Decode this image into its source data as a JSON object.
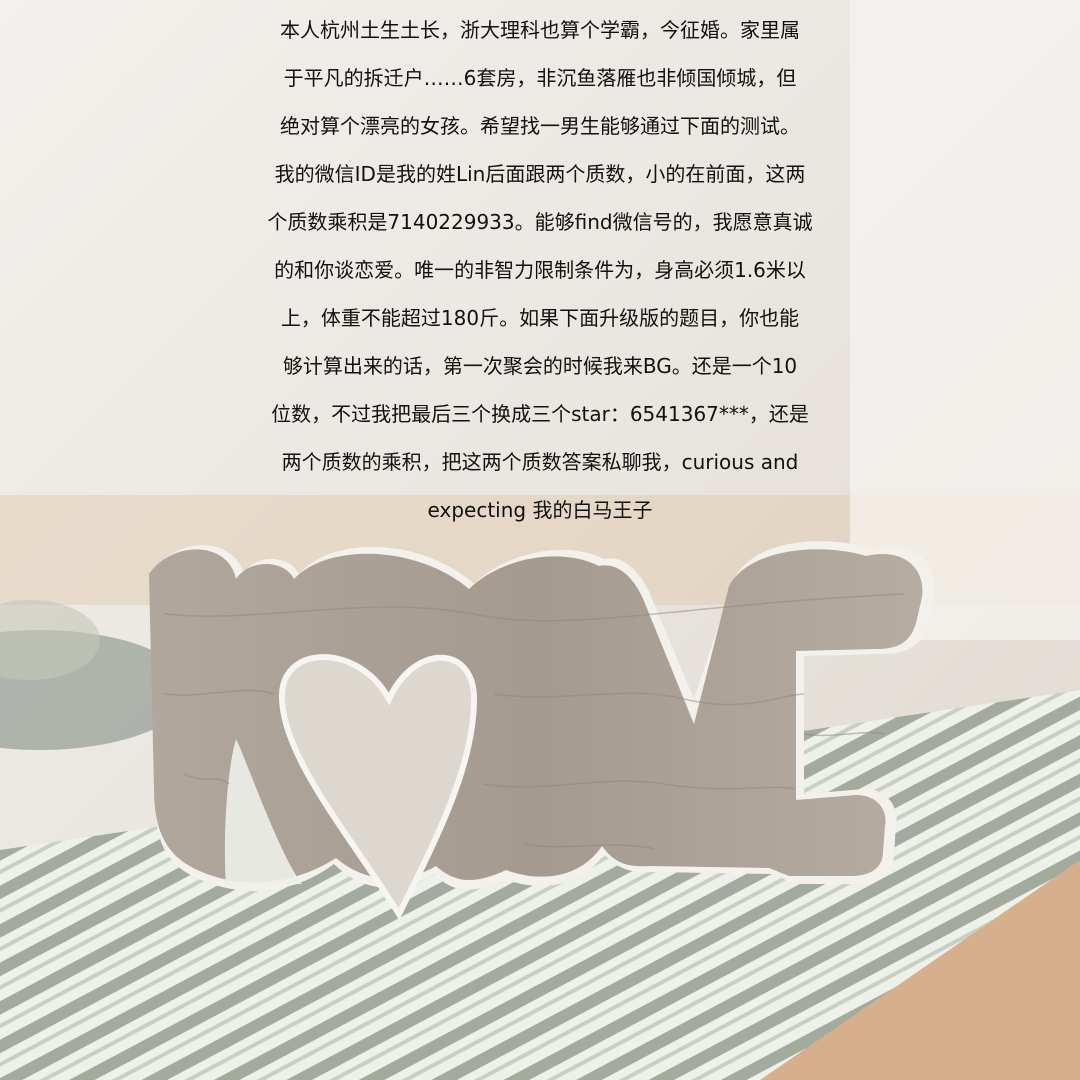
{
  "caption": {
    "lines": [
      "本人杭州土生土长，浙大理科也算个学霸，今征婚。家里属",
      "于平凡的拆迁户……6套房，非沉鱼落雁也非倾国倾城，但",
      "绝对算个漂亮的女孩。希望找一男生能够通过下面的测试。",
      "我的微信ID是我的姓Lin后面跟两个质数，小的在前面，这两",
      "个质数乘积是7140229933。能够find微信号的，我愿意真诚",
      "的和你谈恋爱。唯一的非智力限制条件为，身高必须1.6米以",
      "上，体重不能超过180斤。如果下面升级版的题目，你也能",
      "够计算出来的话，第一次聚会的时候我来BG。还是一个10",
      "位数，不过我把最后三个换成三个star：6541367***，还是",
      "两个质数的乘积，把这两个质数答案私聊我，curious and",
      "expecting 我的白马王子"
    ]
  },
  "photo": {
    "subject": "wooden-love-sign",
    "colors": {
      "wood": "#a99f95",
      "wood_edge": "#f4f1ec",
      "background": "#e8e4de",
      "runner_stripe": "#9fa89c",
      "table": "#d9b38f"
    }
  }
}
